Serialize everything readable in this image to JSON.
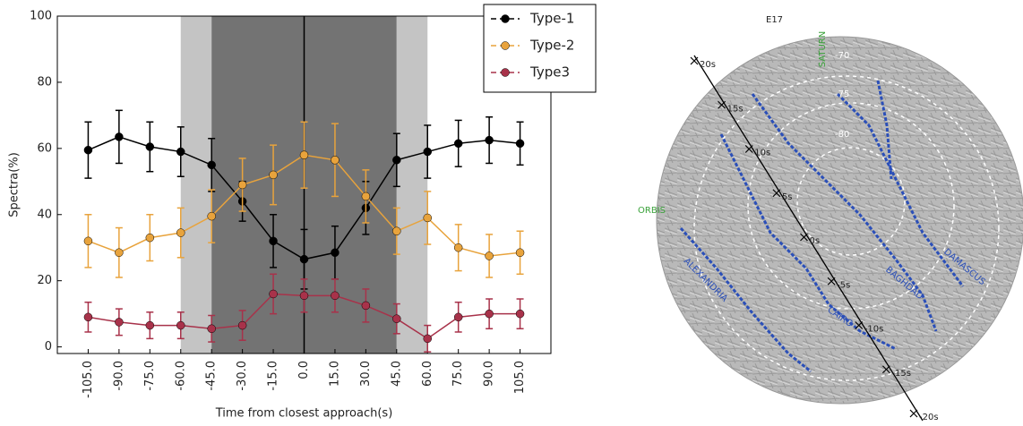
{
  "chart_data": {
    "type": "line",
    "x_label": "Time from closest approach(s)",
    "y_label": "Spectra(%)",
    "x": [
      {
        "value": -105,
        "label": "-105.0"
      },
      {
        "value": -90,
        "label": "-90.0"
      },
      {
        "value": -75,
        "label": "-75.0"
      },
      {
        "value": -60,
        "label": "-60.0"
      },
      {
        "value": -45,
        "label": "-45.0"
      },
      {
        "value": -30,
        "label": "-30.0"
      },
      {
        "value": -15,
        "label": "-15.0"
      },
      {
        "value": 0,
        "label": "0.0"
      },
      {
        "value": 15,
        "label": "15.0"
      },
      {
        "value": 30,
        "label": "30.0"
      },
      {
        "value": 45,
        "label": "45.0"
      },
      {
        "value": 60,
        "label": "60.0"
      },
      {
        "value": 75,
        "label": "75.0"
      },
      {
        "value": 90,
        "label": "90.0"
      },
      {
        "value": 105,
        "label": "105.0"
      }
    ],
    "xlim": [
      -120,
      120
    ],
    "ylim": [
      -2,
      100
    ],
    "yticks": [
      0,
      20,
      40,
      60,
      80,
      100
    ],
    "legend": "upper right",
    "shaded_regions": [
      {
        "x": [
          -60,
          -45
        ],
        "color": "#c4c4c4"
      },
      {
        "x": [
          -45,
          45
        ],
        "color": "#737373"
      },
      {
        "x": [
          45,
          60
        ],
        "color": "#c4c4c4"
      }
    ],
    "vline": 0,
    "series": [
      {
        "name": "Type-1",
        "color": "#000000",
        "values": [
          59.5,
          63.5,
          60.5,
          59,
          55,
          44,
          32,
          26.5,
          28.5,
          42,
          56.5,
          59,
          61.5,
          62.5,
          61.5
        ],
        "errors": [
          8.5,
          8,
          7.5,
          7.5,
          8,
          6,
          8,
          9,
          8,
          8,
          8,
          8,
          7,
          7,
          6.5
        ]
      },
      {
        "name": "Type-2",
        "color": "#e8a33c",
        "values": [
          32,
          28.5,
          33,
          34.5,
          39.5,
          49,
          52,
          58,
          56.5,
          45.5,
          35,
          39,
          30,
          27.5,
          28.5
        ],
        "errors": [
          8,
          7.5,
          7,
          7.5,
          8,
          8,
          9,
          10,
          11,
          8,
          7,
          8,
          7,
          6.5,
          6.5
        ]
      },
      {
        "name": "Type3",
        "color": "#a8324a",
        "values": [
          9,
          7.5,
          6.5,
          6.5,
          5.5,
          6.5,
          16,
          15.5,
          15.5,
          12.5,
          8.5,
          2.5,
          9,
          10,
          10
        ],
        "errors": [
          4.5,
          4,
          4,
          4,
          4,
          4.5,
          6,
          5,
          5,
          5,
          4.5,
          4,
          4.5,
          4.5,
          4.5
        ]
      }
    ]
  },
  "map": {
    "title": "E17",
    "labels": [
      "SATURN",
      "-70",
      "-75",
      "-80",
      "ORBIS",
      "ALEXANDRIA",
      "CAIRO",
      "BAGHDAD",
      "DAMASCUS"
    ],
    "track_labels": [
      "20s",
      "15s",
      "10s",
      "5s",
      "0s",
      "-5s",
      "-10s",
      "-15s",
      "-20s"
    ]
  }
}
